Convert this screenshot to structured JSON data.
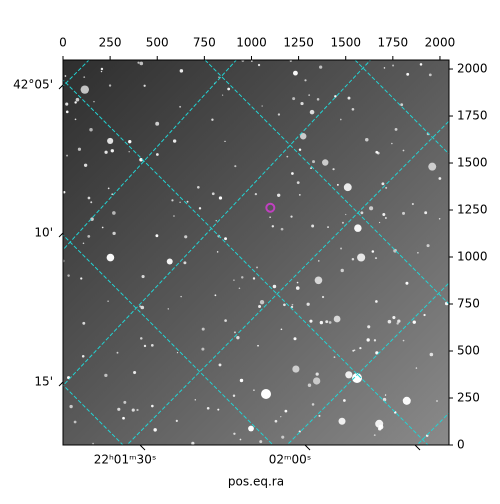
{
  "chart_data": {
    "type": "image",
    "xlabel": "pos.eq.ra",
    "xlim": [
      0,
      2048
    ],
    "ylim": [
      0,
      2048
    ],
    "xticks": [
      0,
      250,
      500,
      750,
      1000,
      1250,
      1500,
      1750,
      2000
    ],
    "yticks": [
      0,
      250,
      500,
      750,
      1000,
      1250,
      1500,
      1750,
      2000
    ],
    "ra_tick_labels": [
      "22ʰ01ᵐ30ˢ",
      "02ᵐ00ˢ"
    ],
    "dec_tick_labels": [
      "42°05'",
      "10'",
      "15'"
    ],
    "grid_color": "#22d3d3",
    "marker_color": "#c040c0",
    "markers": [
      {
        "x": 1100,
        "y": 1262
      }
    ]
  }
}
